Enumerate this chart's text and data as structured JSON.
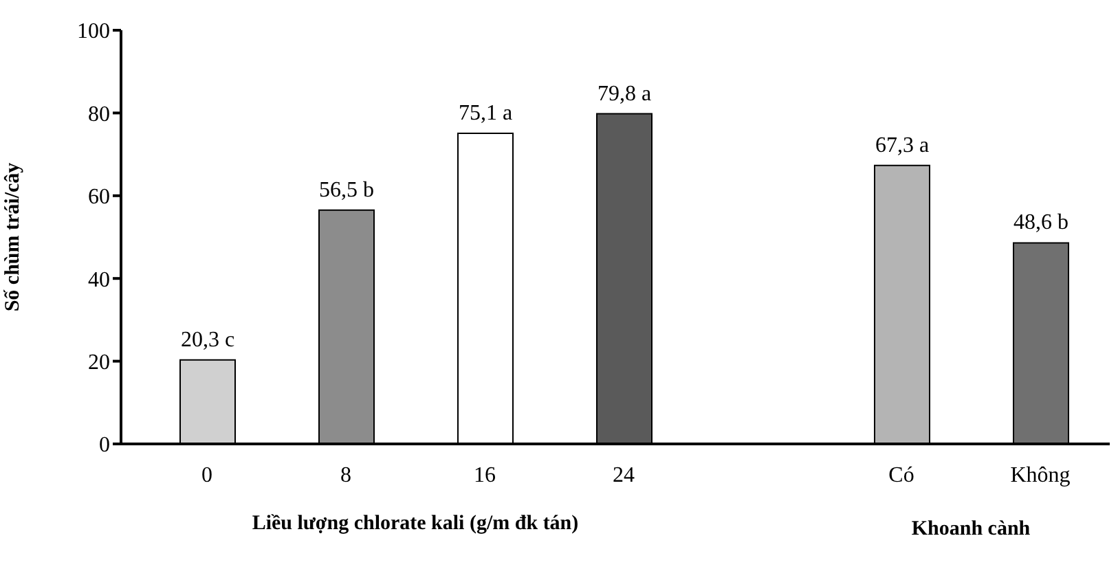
{
  "chart_data": {
    "type": "bar",
    "categories": [
      "0",
      "8",
      "16",
      "24",
      null,
      "Có",
      "Không"
    ],
    "values": [
      20.3,
      56.5,
      75.1,
      79.8,
      null,
      67.3,
      48.6
    ],
    "colors": [
      "#d0d0d0",
      "#8c8c8c",
      "#ffffff",
      "#5a5a5a",
      null,
      "#b4b4b4",
      "#707070"
    ],
    "value_labels": [
      "20,3 c",
      "56,5 b",
      "75,1 a",
      "79,8 a",
      null,
      "67,3 a",
      "48,6 b"
    ],
    "ylabel": "Số chùm trái/cây",
    "xlabel": "Liều lượng chlorate kali (g/m đk tán)",
    "annotations": [
      "Khoanh cành"
    ],
    "ylim": [
      0,
      100
    ],
    "yticks": [
      0,
      20,
      40,
      60,
      80,
      100
    ],
    "grid": false,
    "legend": false
  }
}
